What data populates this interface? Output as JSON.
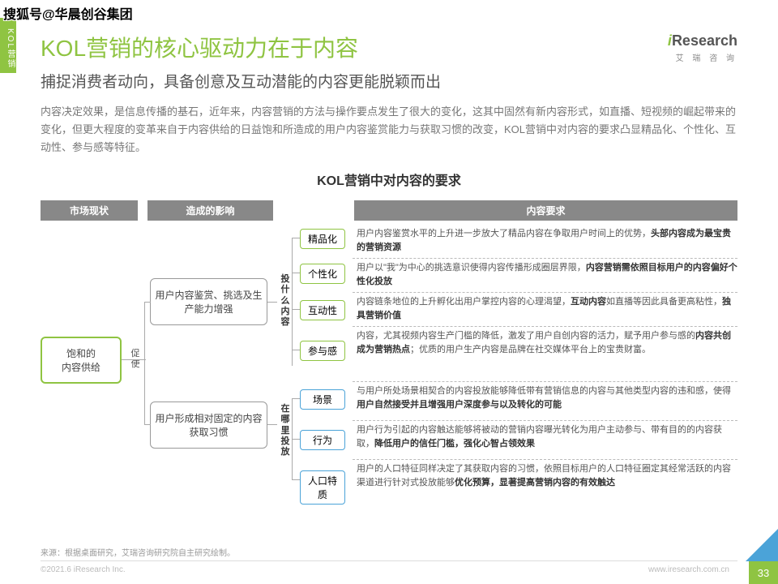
{
  "watermark": "搜狐号@华晨创谷集团",
  "sidebar": "KOL营销",
  "title": "KOL营销的核心驱动力在于内容",
  "subtitle": "捕捉消费者动向，具备创意及互动潜能的内容更能脱颖而出",
  "intro": "内容决定效果，是信息传播的基石，近年来，内容营销的方法与操作要点发生了很大的变化，这其中固然有新内容形式，如直播、短视频的崛起带来的变化，但更大程度的变革来自于内容供给的日益饱和所造成的用户内容鉴赏能力与获取习惯的改变，KOL营销中对内容的要求凸显精品化、个性化、互动性、参与感等特征。",
  "section_title": "KOL营销中对内容的要求",
  "headers": {
    "h1": "市场现状",
    "h2": "造成的影响",
    "h3": "内容要求"
  },
  "box_grn": "饱和的\n内容供给",
  "box_mid1": "用户内容鉴赏、挑选及生产能力增强",
  "box_mid2": "用户形成相对固定的内容获取习惯",
  "prompt": "促使",
  "vlabel1": "投什么内容",
  "vlabel2": "在哪里投放",
  "tags_g": [
    "精品化",
    "个性化",
    "互动性",
    "参与感"
  ],
  "tags_b": [
    "场景",
    "行为",
    "人口特质"
  ],
  "descs": [
    "用户内容鉴赏水平的上升进一步放大了精品内容在争取用户时间上的优势，<b>头部内容成为最宝贵的营销资源</b>",
    "用户以\"我\"为中心的挑选意识使得内容传播形成圈层界限，<b>内容营销需依照目标用户的内容偏好个性化投放</b>",
    "内容链条地位的上升孵化出用户掌控内容的心理渴望，<b>互动内容</b>如直播等因此具备更高粘性，<b>独具营销价值</b>",
    "内容，尤其视频内容生产门槛的降低，激发了用户自创内容的活力，赋予用户参与感的<b>内容共创成为营销热点</b>；优质的用户生产内容是品牌在社交媒体平台上的宝贵财富。",
    "与用户所处场景相契合的内容投放能够降低带有营销信息的内容与其他类型内容的违和感，使得<b>用户自然接受并且增强用户深度参与以及转化的可能</b>",
    "用户行为引起的内容触达能够将被动的营销内容曝光转化为用户主动参与、带有目的的内容获取，<b>降低用户的信任门槛，强化心智占领效果</b>",
    "用户的人口特征同样决定了其获取内容的习惯，依照目标用户的人口特征圈定其经常活跃的内容渠道进行针对式投放能够<b>优化预算，显著提高营销内容的有效触达</b>"
  ],
  "source": "来源：根据桌面研究，艾瑞咨询研究院自主研究绘制。",
  "copyright": "©2021.6 iResearch Inc.",
  "website": "www.iresearch.com.cn",
  "page": "33",
  "logo": {
    "main": "Research",
    "sub": "艾 瑞 咨 询"
  }
}
